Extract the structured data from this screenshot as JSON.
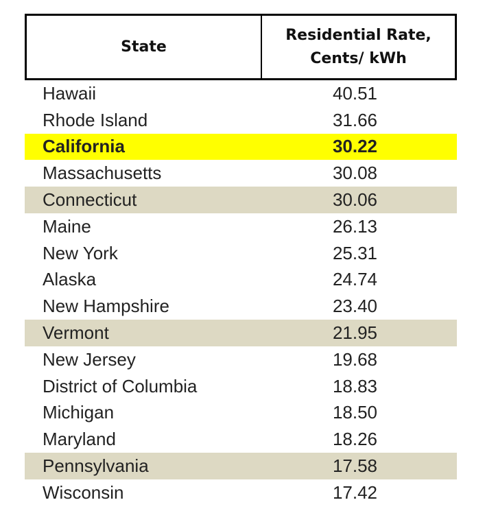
{
  "table": {
    "header": {
      "state": "State",
      "rate": "Residential Rate,\nCents/ kWh"
    },
    "rows": [
      {
        "state": "Hawaii",
        "rate": "40.51",
        "style": "plain"
      },
      {
        "state": "Rhode Island",
        "rate": "31.66",
        "style": "plain"
      },
      {
        "state": "California",
        "rate": "30.22",
        "style": "highlight"
      },
      {
        "state": "Massachusetts",
        "rate": "30.08",
        "style": "plain"
      },
      {
        "state": "Connecticut",
        "rate": "30.06",
        "style": "shade"
      },
      {
        "state": "Maine",
        "rate": "26.13",
        "style": "plain"
      },
      {
        "state": "New York",
        "rate": "25.31",
        "style": "plain"
      },
      {
        "state": "Alaska",
        "rate": "24.74",
        "style": "plain"
      },
      {
        "state": "New Hampshire",
        "rate": "23.40",
        "style": "plain"
      },
      {
        "state": "Vermont",
        "rate": "21.95",
        "style": "shade"
      },
      {
        "state": "New Jersey",
        "rate": "19.68",
        "style": "plain"
      },
      {
        "state": "District of Columbia",
        "rate": "18.83",
        "style": "plain"
      },
      {
        "state": "Michigan",
        "rate": "18.50",
        "style": "plain"
      },
      {
        "state": "Maryland",
        "rate": "18.26",
        "style": "plain"
      },
      {
        "state": "Pennsylvania",
        "rate": "17.58",
        "style": "shade"
      },
      {
        "state": "Wisconsin",
        "rate": "17.42",
        "style": "plain"
      }
    ],
    "colors": {
      "highlight": "#ffff00",
      "shade": "#ddd9c3",
      "border": "#000000"
    }
  }
}
